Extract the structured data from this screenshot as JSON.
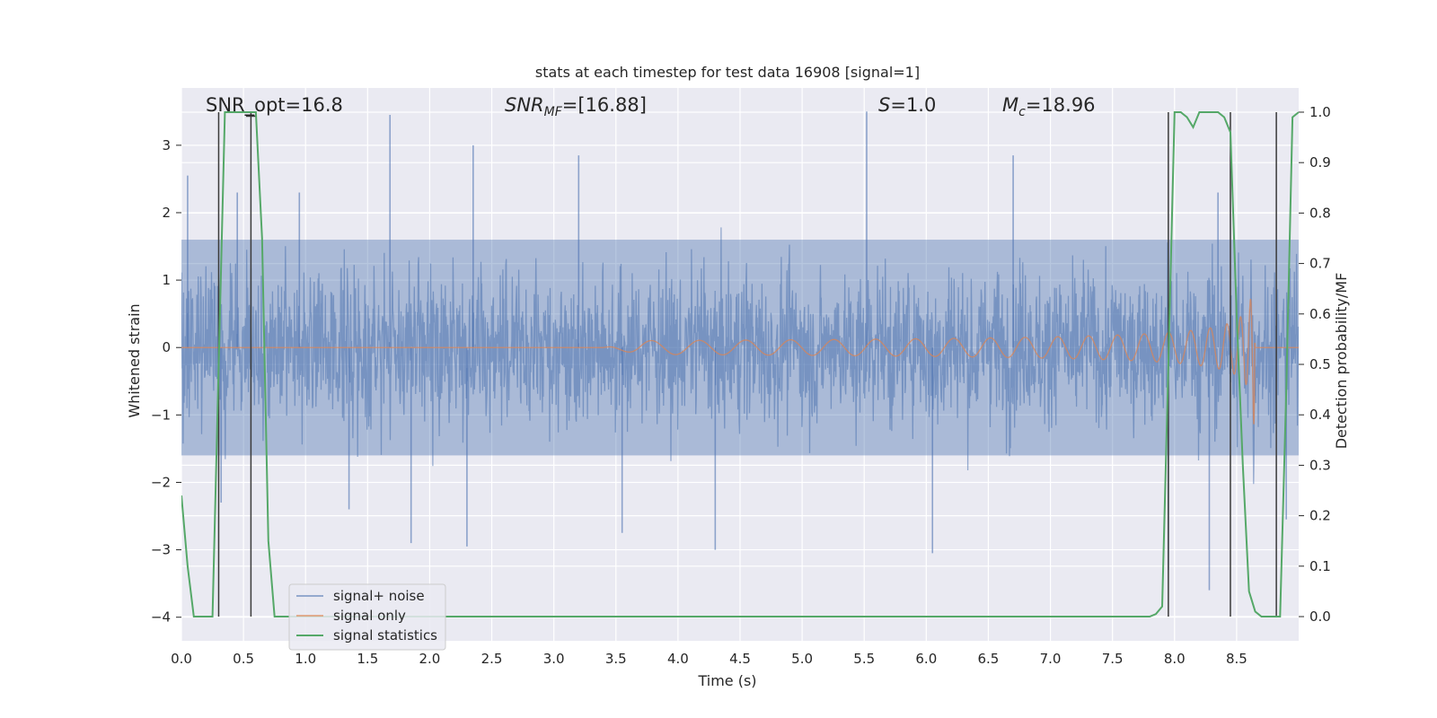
{
  "chart_data": {
    "type": "line",
    "title": "stats at each timestep for test data 16908 [signal=1]",
    "xlabel": "Time (s)",
    "ylabel_left": "Whitened strain",
    "ylabel_right": "Detection probability/MF",
    "xlim": [
      0.0,
      9.0
    ],
    "ylim_left": [
      -4.35,
      3.85
    ],
    "ylim_right": [
      -0.048,
      1.048
    ],
    "grid": true,
    "legend_placement": "lower-left",
    "xticks": [
      "0.0",
      "0.5",
      "1.0",
      "1.5",
      "2.0",
      "2.5",
      "3.0",
      "3.5",
      "4.0",
      "4.5",
      "5.0",
      "5.5",
      "6.0",
      "6.5",
      "7.0",
      "7.5",
      "8.0",
      "8.5"
    ],
    "yticks_left": [
      "3",
      "2",
      "1",
      "0",
      "−1",
      "−2",
      "−3",
      "−4"
    ],
    "yticks_right": [
      "1.0",
      "0.9",
      "0.8",
      "0.7",
      "0.6",
      "0.5",
      "0.4",
      "0.3",
      "0.2",
      "0.1",
      "0.0"
    ],
    "annotations": {
      "snr_opt": "SNR_opt=16.8",
      "snr_mf_main": "SNR",
      "snr_mf_sub": "MF",
      "snr_mf_val": "=[16.88]",
      "s_sym": "S",
      "s_val": "=1.0",
      "mc_main": "M",
      "mc_sub": "c",
      "mc_val": "=18.96"
    },
    "series": [
      {
        "name": "signal+ noise",
        "color": "#4c72b0",
        "axis": "left",
        "description_band": [
          -1.6,
          1.6
        ],
        "peaks": [
          [
            0.05,
            2.55
          ],
          [
            0.45,
            2.3
          ],
          [
            0.95,
            2.3
          ],
          [
            1.68,
            3.45
          ],
          [
            2.35,
            3.0
          ],
          [
            3.2,
            2.85
          ],
          [
            5.52,
            3.5
          ],
          [
            6.7,
            2.85
          ],
          [
            8.35,
            2.3
          ],
          [
            0.32,
            -2.3
          ],
          [
            1.35,
            -2.4
          ],
          [
            1.85,
            -2.9
          ],
          [
            2.3,
            -2.95
          ],
          [
            3.55,
            -2.75
          ],
          [
            4.3,
            -3.0
          ],
          [
            6.05,
            -3.05
          ],
          [
            7.95,
            -3.3
          ],
          [
            8.28,
            -3.6
          ],
          [
            8.9,
            -2.55
          ]
        ]
      },
      {
        "name": "signal only",
        "color": "#dd8452",
        "axis": "left",
        "description": "chirp starting near 3.5 s, growing amplitude, peak about 2.6 near 8.65 s, then zero"
      },
      {
        "name": "signal statistics",
        "color": "#55a868",
        "axis": "right",
        "x": [
          0.0,
          0.05,
          0.1,
          0.15,
          0.2,
          0.25,
          0.3,
          0.35,
          0.4,
          0.45,
          0.5,
          0.55,
          0.6,
          0.65,
          0.7,
          0.75,
          1.0,
          2.0,
          3.0,
          4.0,
          5.0,
          6.0,
          7.0,
          7.5,
          7.8,
          7.85,
          7.9,
          7.95,
          8.0,
          8.05,
          8.1,
          8.15,
          8.2,
          8.25,
          8.3,
          8.35,
          8.4,
          8.45,
          8.5,
          8.55,
          8.6,
          8.65,
          8.7,
          8.75,
          8.8,
          8.85,
          8.9,
          8.95,
          9.0
        ],
        "values": [
          0.24,
          0.1,
          0.0,
          0.0,
          0.0,
          0.0,
          0.5,
          1.0,
          1.0,
          1.0,
          1.0,
          1.0,
          1.0,
          0.75,
          0.15,
          0.0,
          0.0,
          0.0,
          0.0,
          0.0,
          0.0,
          0.0,
          0.0,
          0.0,
          0.0,
          0.005,
          0.02,
          0.5,
          1.0,
          1.0,
          0.99,
          0.97,
          1.0,
          1.0,
          1.0,
          1.0,
          0.99,
          0.96,
          0.6,
          0.3,
          0.05,
          0.01,
          0.0,
          0.0,
          0.0,
          0.0,
          0.45,
          0.99,
          1.0
        ]
      }
    ],
    "vlines_time": [
      0.3,
      0.56,
      7.95,
      8.45,
      8.82
    ]
  }
}
